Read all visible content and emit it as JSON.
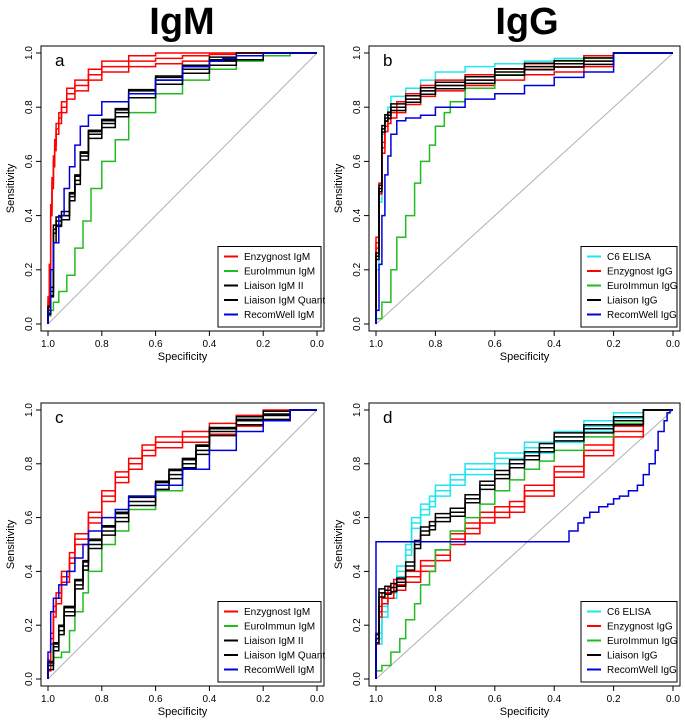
{
  "column_titles": [
    "IgM",
    "IgG"
  ],
  "colors": {
    "red": "#ff0000",
    "green": "#22bb22",
    "black": "#000000",
    "blue": "#0000dd",
    "cyan": "#22e5f0",
    "diagonal": "#b0b0b0"
  },
  "chart_data": [
    {
      "type": "line",
      "panel_letter": "a",
      "xlabel": "Specificity",
      "ylabel": "Sensitivity",
      "xlim": [
        1.0,
        0.0
      ],
      "ylim": [
        0.0,
        1.0
      ],
      "xticks": [
        "1.0",
        "0.8",
        "0.6",
        "0.4",
        "0.2",
        "0.0"
      ],
      "yticks": [
        "0.0",
        "0.2",
        "0.4",
        "0.6",
        "0.8",
        "1.0"
      ],
      "legend_position": "bottom-right",
      "series": [
        {
          "name": "Enzygnost IgM",
          "color": "red",
          "ci": 0.02,
          "x": [
            1.0,
            0.995,
            0.99,
            0.985,
            0.98,
            0.975,
            0.97,
            0.96,
            0.95,
            0.93,
            0.9,
            0.85,
            0.8,
            0.7,
            0.6,
            0.5,
            0.4,
            0.3,
            0.2,
            0.0
          ],
          "y": [
            0.0,
            0.08,
            0.2,
            0.42,
            0.52,
            0.6,
            0.66,
            0.72,
            0.76,
            0.8,
            0.85,
            0.88,
            0.92,
            0.95,
            0.97,
            0.98,
            0.99,
            0.995,
            1.0,
            1.0
          ]
        },
        {
          "name": "EuroImmun IgM",
          "color": "green",
          "ci": 0.0,
          "x": [
            1.0,
            0.99,
            0.98,
            0.96,
            0.93,
            0.9,
            0.87,
            0.84,
            0.8,
            0.75,
            0.7,
            0.6,
            0.5,
            0.4,
            0.3,
            0.2,
            0.1,
            0.0
          ],
          "y": [
            0.0,
            0.03,
            0.05,
            0.08,
            0.12,
            0.18,
            0.28,
            0.38,
            0.5,
            0.6,
            0.68,
            0.78,
            0.85,
            0.9,
            0.94,
            0.97,
            0.99,
            1.0
          ]
        },
        {
          "name": "Liaison IgM II",
          "color": "black",
          "ci": 0.015,
          "x": [
            1.0,
            0.99,
            0.98,
            0.97,
            0.95,
            0.92,
            0.9,
            0.88,
            0.85,
            0.8,
            0.75,
            0.7,
            0.6,
            0.5,
            0.4,
            0.3,
            0.2,
            0.1,
            0.0
          ],
          "y": [
            0.0,
            0.05,
            0.12,
            0.35,
            0.38,
            0.4,
            0.47,
            0.53,
            0.62,
            0.7,
            0.74,
            0.78,
            0.85,
            0.9,
            0.94,
            0.97,
            0.99,
            1.0,
            1.0
          ]
        },
        {
          "name": "Liaison IgM Quant",
          "color": "black",
          "ci": 0.0,
          "x": [
            1.0,
            0.99,
            0.98,
            0.97,
            0.95,
            0.92,
            0.9,
            0.88,
            0.85,
            0.8,
            0.75,
            0.7,
            0.6,
            0.5,
            0.4,
            0.3,
            0.2,
            0.1,
            0.0
          ],
          "y": [
            0.0,
            0.04,
            0.1,
            0.3,
            0.36,
            0.4,
            0.48,
            0.55,
            0.63,
            0.71,
            0.75,
            0.79,
            0.86,
            0.91,
            0.95,
            0.975,
            0.99,
            1.0,
            1.0
          ]
        },
        {
          "name": "RecomWell IgM",
          "color": "blue",
          "ci": 0.0,
          "x": [
            1.0,
            0.99,
            0.98,
            0.96,
            0.94,
            0.92,
            0.9,
            0.88,
            0.85,
            0.8,
            0.7,
            0.6,
            0.5,
            0.4,
            0.35,
            0.3,
            0.2,
            0.1,
            0.0
          ],
          "y": [
            0.0,
            0.05,
            0.2,
            0.3,
            0.4,
            0.5,
            0.58,
            0.66,
            0.73,
            0.77,
            0.82,
            0.85,
            0.9,
            0.95,
            0.97,
            0.98,
            0.99,
            1.0,
            1.0
          ]
        }
      ]
    },
    {
      "type": "line",
      "panel_letter": "b",
      "xlabel": "Specificity",
      "ylabel": "Sensitivity",
      "xlim": [
        1.0,
        0.0
      ],
      "ylim": [
        0.0,
        1.0
      ],
      "xticks": [
        "1.0",
        "0.8",
        "0.6",
        "0.4",
        "0.2",
        "0.0"
      ],
      "yticks": [
        "0.0",
        "0.2",
        "0.4",
        "0.6",
        "0.8",
        "1.0"
      ],
      "legend_position": "bottom-right",
      "series": [
        {
          "name": "C6 ELISA",
          "color": "cyan",
          "ci": 0.0,
          "x": [
            1.0,
            0.99,
            0.98,
            0.97,
            0.96,
            0.95,
            0.9,
            0.85,
            0.8,
            0.7,
            0.6,
            0.5,
            0.4,
            0.3,
            0.2,
            0.0
          ],
          "y": [
            0.0,
            0.2,
            0.45,
            0.7,
            0.77,
            0.8,
            0.84,
            0.87,
            0.9,
            0.93,
            0.95,
            0.96,
            0.97,
            0.98,
            0.99,
            1.0
          ]
        },
        {
          "name": "Enzygnost IgG",
          "color": "red",
          "ci": 0.02,
          "x": [
            1.0,
            0.99,
            0.98,
            0.97,
            0.96,
            0.95,
            0.93,
            0.9,
            0.85,
            0.8,
            0.7,
            0.6,
            0.5,
            0.4,
            0.3,
            0.2,
            0.0
          ],
          "y": [
            0.0,
            0.3,
            0.5,
            0.65,
            0.73,
            0.76,
            0.78,
            0.8,
            0.83,
            0.86,
            0.88,
            0.9,
            0.92,
            0.94,
            0.95,
            0.97,
            1.0
          ]
        },
        {
          "name": "EuroImmun IgG",
          "color": "green",
          "ci": 0.0,
          "x": [
            1.0,
            0.98,
            0.95,
            0.93,
            0.9,
            0.87,
            0.85,
            0.82,
            0.8,
            0.77,
            0.75,
            0.7,
            0.6,
            0.5,
            0.4,
            0.3,
            0.2,
            0.0
          ],
          "y": [
            0.0,
            0.02,
            0.08,
            0.2,
            0.32,
            0.4,
            0.52,
            0.6,
            0.66,
            0.73,
            0.78,
            0.82,
            0.87,
            0.92,
            0.95,
            0.97,
            0.98,
            1.0
          ]
        },
        {
          "name": "Liaison IgG",
          "color": "black",
          "ci": 0.012,
          "x": [
            1.0,
            0.99,
            0.98,
            0.97,
            0.96,
            0.95,
            0.9,
            0.85,
            0.8,
            0.7,
            0.6,
            0.5,
            0.4,
            0.3,
            0.2,
            0.0
          ],
          "y": [
            0.0,
            0.25,
            0.5,
            0.72,
            0.76,
            0.77,
            0.8,
            0.83,
            0.86,
            0.88,
            0.9,
            0.93,
            0.95,
            0.96,
            0.97,
            1.0
          ]
        },
        {
          "name": "RecomWell IgG",
          "color": "blue",
          "ci": 0.0,
          "x": [
            1.0,
            0.99,
            0.98,
            0.97,
            0.96,
            0.95,
            0.93,
            0.9,
            0.85,
            0.8,
            0.7,
            0.6,
            0.5,
            0.4,
            0.3,
            0.2,
            0.0
          ],
          "y": [
            0.0,
            0.05,
            0.22,
            0.4,
            0.55,
            0.62,
            0.7,
            0.75,
            0.76,
            0.77,
            0.8,
            0.83,
            0.85,
            0.88,
            0.91,
            0.93,
            1.0
          ]
        }
      ]
    },
    {
      "type": "line",
      "panel_letter": "c",
      "xlabel": "Specificity",
      "ylabel": "Sensitivity",
      "xlim": [
        1.0,
        0.0
      ],
      "ylim": [
        0.0,
        1.0
      ],
      "xticks": [
        "1.0",
        "0.8",
        "0.6",
        "0.4",
        "0.2",
        "0.0"
      ],
      "yticks": [
        "0.0",
        "0.2",
        "0.4",
        "0.6",
        "0.8",
        "1.0"
      ],
      "legend_position": "bottom-right",
      "series": [
        {
          "name": "Enzygnost IgM",
          "color": "red",
          "ci": 0.02,
          "x": [
            1.0,
            0.99,
            0.98,
            0.97,
            0.95,
            0.92,
            0.9,
            0.85,
            0.8,
            0.75,
            0.7,
            0.65,
            0.6,
            0.5,
            0.4,
            0.3,
            0.2,
            0.1,
            0.0
          ],
          "y": [
            0.0,
            0.05,
            0.15,
            0.25,
            0.3,
            0.38,
            0.45,
            0.52,
            0.6,
            0.68,
            0.75,
            0.8,
            0.85,
            0.88,
            0.9,
            0.93,
            0.96,
            0.98,
            1.0
          ]
        },
        {
          "name": "EuroImmun IgM",
          "color": "green",
          "ci": 0.0,
          "x": [
            1.0,
            0.98,
            0.95,
            0.92,
            0.9,
            0.87,
            0.85,
            0.8,
            0.75,
            0.7,
            0.6,
            0.5,
            0.45,
            0.4,
            0.3,
            0.2,
            0.1,
            0.0
          ],
          "y": [
            0.0,
            0.05,
            0.08,
            0.1,
            0.18,
            0.25,
            0.32,
            0.4,
            0.5,
            0.55,
            0.63,
            0.7,
            0.78,
            0.85,
            0.93,
            0.96,
            0.98,
            1.0
          ]
        },
        {
          "name": "Liaison IgM II",
          "color": "black",
          "ci": 0.015,
          "x": [
            1.0,
            0.98,
            0.96,
            0.94,
            0.9,
            0.87,
            0.85,
            0.8,
            0.75,
            0.7,
            0.6,
            0.55,
            0.5,
            0.45,
            0.4,
            0.3,
            0.2,
            0.1,
            0.0
          ],
          "y": [
            0.0,
            0.05,
            0.12,
            0.18,
            0.25,
            0.35,
            0.42,
            0.5,
            0.55,
            0.6,
            0.66,
            0.72,
            0.76,
            0.8,
            0.85,
            0.92,
            0.96,
            0.98,
            1.0
          ]
        },
        {
          "name": "Liaison IgM Quant",
          "color": "black",
          "ci": 0.0,
          "x": [
            1.0,
            0.98,
            0.96,
            0.94,
            0.9,
            0.87,
            0.85,
            0.8,
            0.75,
            0.7,
            0.6,
            0.55,
            0.5,
            0.45,
            0.4,
            0.3,
            0.2,
            0.1,
            0.0
          ],
          "y": [
            0.0,
            0.06,
            0.13,
            0.2,
            0.27,
            0.37,
            0.44,
            0.52,
            0.57,
            0.62,
            0.68,
            0.73,
            0.78,
            0.82,
            0.87,
            0.93,
            0.965,
            0.985,
            1.0
          ]
        },
        {
          "name": "RecomWell IgM",
          "color": "blue",
          "ci": 0.0,
          "x": [
            1.0,
            0.99,
            0.98,
            0.96,
            0.93,
            0.9,
            0.87,
            0.85,
            0.8,
            0.75,
            0.7,
            0.6,
            0.5,
            0.4,
            0.3,
            0.2,
            0.1,
            0.0
          ],
          "y": [
            0.0,
            0.1,
            0.25,
            0.3,
            0.35,
            0.4,
            0.45,
            0.5,
            0.55,
            0.6,
            0.63,
            0.68,
            0.72,
            0.78,
            0.85,
            0.92,
            0.96,
            1.0
          ]
        }
      ]
    },
    {
      "type": "line",
      "panel_letter": "d",
      "xlabel": "Specificity",
      "ylabel": "Sensitivity",
      "xlim": [
        1.0,
        0.0
      ],
      "ylim": [
        0.0,
        1.0
      ],
      "xticks": [
        "1.0",
        "0.8",
        "0.6",
        "0.4",
        "0.2",
        "0.0"
      ],
      "yticks": [
        "0.0",
        "0.2",
        "0.4",
        "0.6",
        "0.8",
        "1.0"
      ],
      "legend_position": "bottom-right",
      "series": [
        {
          "name": "C6 ELISA",
          "color": "cyan",
          "ci": 0.02,
          "x": [
            1.0,
            0.98,
            0.96,
            0.93,
            0.9,
            0.88,
            0.85,
            0.82,
            0.8,
            0.75,
            0.7,
            0.6,
            0.5,
            0.4,
            0.3,
            0.2,
            0.1,
            0.0
          ],
          "y": [
            0.0,
            0.15,
            0.25,
            0.32,
            0.4,
            0.48,
            0.58,
            0.63,
            0.66,
            0.7,
            0.74,
            0.78,
            0.82,
            0.86,
            0.9,
            0.94,
            0.97,
            1.0
          ]
        },
        {
          "name": "Enzygnost IgG",
          "color": "red",
          "ci": 0.02,
          "x": [
            1.0,
            0.99,
            0.98,
            0.96,
            0.94,
            0.9,
            0.85,
            0.8,
            0.75,
            0.7,
            0.65,
            0.6,
            0.55,
            0.5,
            0.4,
            0.3,
            0.2,
            0.1,
            0.0
          ],
          "y": [
            0.0,
            0.15,
            0.25,
            0.3,
            0.32,
            0.35,
            0.38,
            0.42,
            0.46,
            0.52,
            0.56,
            0.6,
            0.62,
            0.64,
            0.7,
            0.77,
            0.85,
            0.92,
            1.0
          ]
        },
        {
          "name": "EuroImmun IgG",
          "color": "green",
          "ci": 0.0,
          "x": [
            1.0,
            0.98,
            0.95,
            0.92,
            0.9,
            0.87,
            0.85,
            0.82,
            0.8,
            0.75,
            0.7,
            0.65,
            0.6,
            0.55,
            0.5,
            0.45,
            0.4,
            0.3,
            0.2,
            0.1,
            0.0
          ],
          "y": [
            0.0,
            0.03,
            0.05,
            0.1,
            0.15,
            0.22,
            0.28,
            0.35,
            0.4,
            0.48,
            0.55,
            0.6,
            0.65,
            0.7,
            0.74,
            0.78,
            0.81,
            0.85,
            0.9,
            0.95,
            1.0
          ]
        },
        {
          "name": "Liaison IgG",
          "color": "black",
          "ci": 0.015,
          "x": [
            1.0,
            0.99,
            0.97,
            0.95,
            0.93,
            0.9,
            0.87,
            0.85,
            0.82,
            0.8,
            0.75,
            0.7,
            0.65,
            0.6,
            0.55,
            0.5,
            0.45,
            0.4,
            0.3,
            0.2,
            0.1,
            0.0
          ],
          "y": [
            0.0,
            0.15,
            0.32,
            0.33,
            0.34,
            0.36,
            0.42,
            0.5,
            0.55,
            0.57,
            0.6,
            0.62,
            0.67,
            0.72,
            0.76,
            0.8,
            0.83,
            0.86,
            0.9,
            0.93,
            0.96,
            1.0
          ]
        },
        {
          "name": "RecomWell IgG",
          "color": "blue",
          "ci": 0.0,
          "x": [
            1.0,
            0.35,
            0.32,
            0.3,
            0.28,
            0.25,
            0.22,
            0.2,
            0.18,
            0.15,
            0.12,
            0.1,
            0.08,
            0.06,
            0.05,
            0.03,
            0.02,
            0.01,
            0.0
          ],
          "y": [
            0.0,
            0.51,
            0.55,
            0.58,
            0.6,
            0.62,
            0.64,
            0.65,
            0.67,
            0.68,
            0.7,
            0.72,
            0.76,
            0.8,
            0.85,
            0.92,
            0.96,
            0.99,
            1.0
          ]
        }
      ]
    }
  ]
}
